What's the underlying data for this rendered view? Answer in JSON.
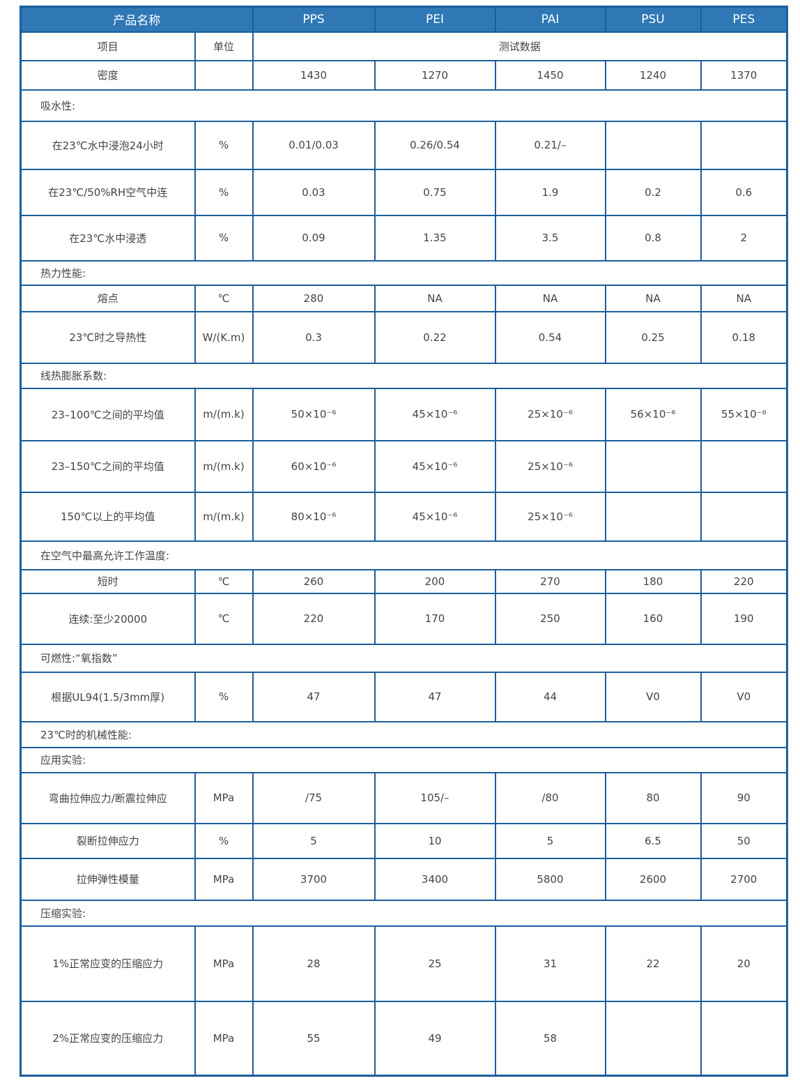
{
  "header": {
    "title": "产品名称",
    "materials": [
      "PPS",
      "PEI",
      "PAI",
      "PSU",
      "PES"
    ]
  },
  "subheader": {
    "item": "项目",
    "unit": "单位",
    "data": "测试数据"
  },
  "rows": [
    {
      "type": "data",
      "item": "密度",
      "unit": "",
      "values": [
        "1430",
        "1270",
        "1450",
        "1240",
        "1370"
      ]
    },
    {
      "type": "section",
      "label": "吸水性:"
    },
    {
      "type": "data",
      "item": "在23℃水中浸泡24小时",
      "unit": "%",
      "values": [
        "0.01/0.03",
        "0.26/0.54",
        "0.21/–",
        "",
        ""
      ]
    },
    {
      "type": "data",
      "item": "在23℃/50%RH空气中连",
      "unit": "%",
      "values": [
        "0.03",
        "0.75",
        "1.9",
        "0.2",
        "0.6"
      ]
    },
    {
      "type": "data",
      "item": "在23℃水中浸透",
      "unit": "%",
      "values": [
        "0.09",
        "1.35",
        "3.5",
        "0.8",
        "2"
      ]
    },
    {
      "type": "section",
      "label": "热力性能:"
    },
    {
      "type": "data",
      "item": "熔点",
      "unit": "℃",
      "values": [
        "280",
        "NA",
        "NA",
        "NA",
        "NA"
      ]
    },
    {
      "type": "data",
      "item": "23℃时之导热性",
      "unit": "W/(K.m)",
      "values": [
        "0.3",
        "0.22",
        "0.54",
        "0.25",
        "0.18"
      ]
    },
    {
      "type": "section",
      "label": "线热膨胀系数:"
    },
    {
      "type": "data",
      "item": "23–100℃之间的平均值",
      "unit": "m/(m.k)",
      "values": [
        "50×10⁻⁶",
        "45×10⁻⁶",
        "25×10⁻⁶",
        "56×10⁻⁶",
        "55×10⁻⁶"
      ]
    },
    {
      "type": "data",
      "item": "23–150℃之间的平均值",
      "unit": "m/(m.k)",
      "values": [
        "60×10⁻⁶",
        "45×10⁻⁶",
        "25×10⁻⁶",
        "",
        ""
      ]
    },
    {
      "type": "data",
      "item": "150℃以上的平均值",
      "unit": "m/(m.k)",
      "values": [
        "80×10⁻⁶",
        "45×10⁻⁶",
        "25×10⁻⁶",
        "",
        ""
      ]
    },
    {
      "type": "section",
      "label": "在空气中最高允许工作温度:"
    },
    {
      "type": "data",
      "item": "短时",
      "unit": "℃",
      "values": [
        "260",
        "200",
        "270",
        "180",
        "220"
      ]
    },
    {
      "type": "data",
      "item": "连续:至少20000",
      "unit": "℃",
      "values": [
        "220",
        "170",
        "250",
        "160",
        "190"
      ]
    },
    {
      "type": "section",
      "label": "可燃性:“氧指数”"
    },
    {
      "type": "data",
      "item": "根据UL94(1.5/3mm厚)",
      "unit": "%",
      "values": [
        "47",
        "47",
        "44",
        "V0",
        "V0"
      ]
    },
    {
      "type": "section",
      "label": "23℃时的机械性能:"
    },
    {
      "type": "section",
      "label": "应用实验:"
    },
    {
      "type": "data",
      "item": "弯曲拉伸应力/断震拉伸应",
      "unit": "MPa",
      "values": [
        "/75",
        "105/–",
        "/80",
        "80",
        "90"
      ]
    },
    {
      "type": "data",
      "item": "裂断拉伸应力",
      "unit": "%",
      "values": [
        "5",
        "10",
        "5",
        "6.5",
        "50"
      ]
    },
    {
      "type": "data",
      "item": "拉伸弹性模量",
      "unit": "MPa",
      "values": [
        "3700",
        "3400",
        "5800",
        "2600",
        "2700"
      ]
    },
    {
      "type": "section",
      "label": "压缩实验:"
    },
    {
      "type": "data",
      "item": "1%正常应变的压缩应力",
      "unit": "MPa",
      "values": [
        "28",
        "25",
        "31",
        "22",
        "20"
      ]
    },
    {
      "type": "data",
      "item": "2%正常应变的压缩应力",
      "unit": "MPa",
      "values": [
        "55",
        "49",
        "58",
        "",
        ""
      ]
    }
  ]
}
